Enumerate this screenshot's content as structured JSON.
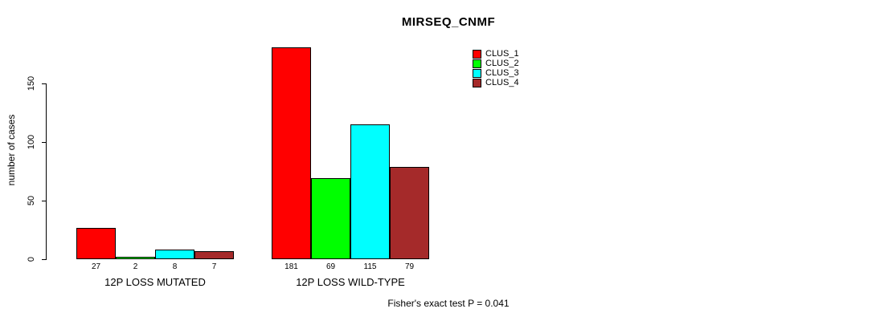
{
  "title": "MIRSEQ_CNMF",
  "footer": "Fisher's exact test P = 0.041",
  "chart_data": {
    "type": "bar",
    "title": "MIRSEQ_CNMF",
    "xlabel": "",
    "ylabel": "number of cases",
    "categories": [
      "12P LOSS MUTATED",
      "12P LOSS WILD-TYPE"
    ],
    "series": [
      {
        "name": "CLUS_1",
        "color": "#ff0000",
        "values": [
          27,
          181
        ]
      },
      {
        "name": "CLUS_2",
        "color": "#00ff00",
        "values": [
          2,
          69
        ]
      },
      {
        "name": "CLUS_3",
        "color": "#00ffff",
        "values": [
          8,
          115
        ]
      },
      {
        "name": "CLUS_4",
        "color": "#a52a2a",
        "values": [
          7,
          79
        ]
      }
    ],
    "yticks": [
      0,
      50,
      100,
      150
    ],
    "ylim": [
      0,
      185
    ],
    "grid": false,
    "legend_position": "top-right",
    "bar_value_labels": true,
    "annotation": "Fisher's exact test P = 0.041"
  }
}
